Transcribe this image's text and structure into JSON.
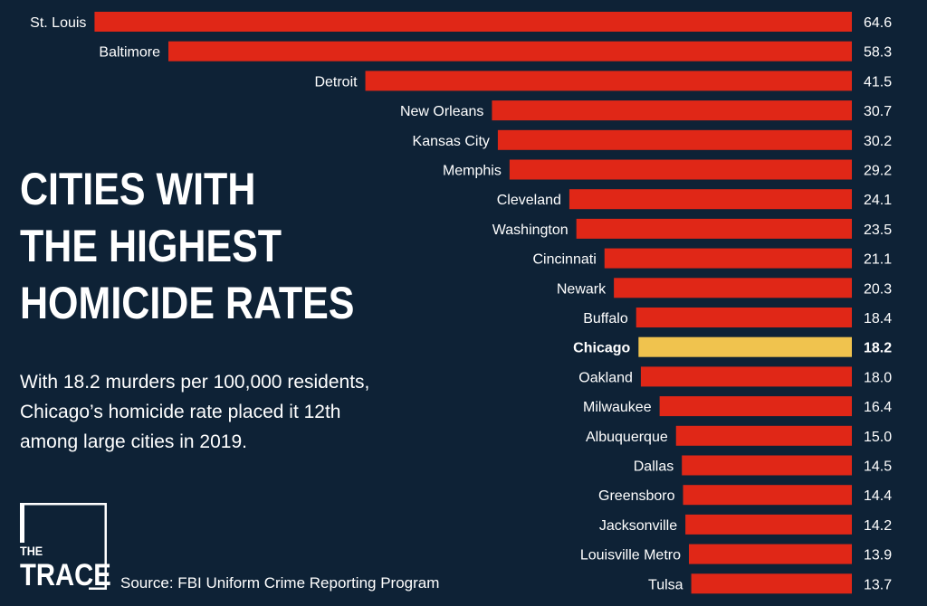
{
  "title_lines": [
    "CITIES WITH",
    "THE HIGHEST",
    "HOMICIDE RATES"
  ],
  "subtitle_lines": [
    "With 18.2 murders per 100,000 residents,",
    "Chicago’s homicide rate placed it 12th",
    "among large cities in 2019."
  ],
  "logo": {
    "line1": "THE",
    "line2": "TRACE"
  },
  "source": "Source: FBI Uniform Crime Reporting Program",
  "colors": {
    "background": "#0e2236",
    "bar": "#e02717",
    "highlight_bar": "#f0c34e",
    "text": "#ffffff"
  },
  "chart_data": {
    "type": "bar",
    "orientation": "horizontal",
    "highlight": "Chicago",
    "categories": [
      "St. Louis",
      "Baltimore",
      "Detroit",
      "New Orleans",
      "Kansas City",
      "Memphis",
      "Cleveland",
      "Washington",
      "Cincinnati",
      "Newark",
      "Buffalo",
      "Chicago",
      "Oakland",
      "Milwaukee",
      "Albuquerque",
      "Dallas",
      "Greensboro",
      "Jacksonville",
      "Louisville Metro",
      "Tulsa"
    ],
    "values": [
      64.6,
      58.3,
      41.5,
      30.7,
      30.2,
      29.2,
      24.1,
      23.5,
      21.1,
      20.3,
      18.4,
      18.2,
      18.0,
      16.4,
      15.0,
      14.5,
      14.4,
      14.2,
      13.9,
      13.7
    ],
    "value_labels": [
      "64.6",
      "58.3",
      "41.5",
      "30.7",
      "30.2",
      "29.2",
      "24.1",
      "23.5",
      "21.1",
      "20.3",
      "18.4",
      "18.2",
      "18.0",
      "16.4",
      "15.0",
      "14.5",
      "14.4",
      "14.2",
      "13.9",
      "13.7"
    ],
    "grid": false,
    "legend": "none"
  }
}
